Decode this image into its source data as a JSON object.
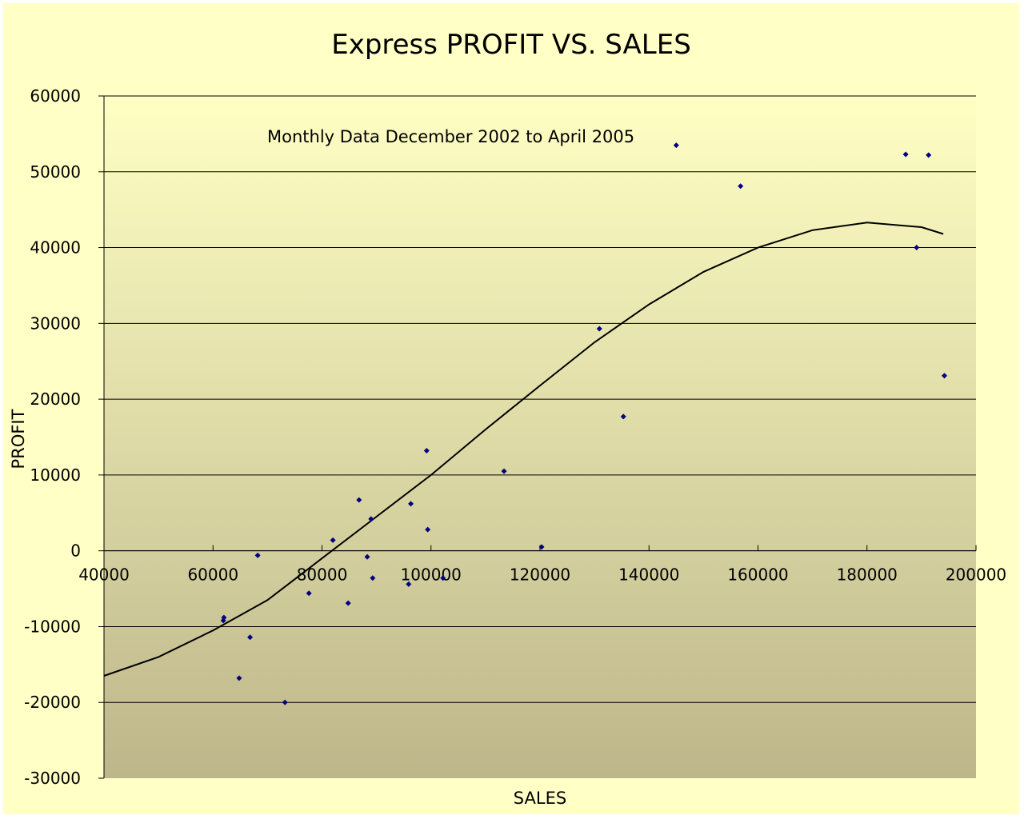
{
  "chart_data": {
    "type": "scatter",
    "title": "Express PROFIT VS. SALES",
    "xlabel": "SALES",
    "ylabel": "PROFIT",
    "annotation": "Monthly Data December 2002 to April 2005",
    "xlim": [
      40000,
      200000
    ],
    "ylim": [
      -30000,
      60000
    ],
    "x_ticks": [
      40000,
      60000,
      80000,
      100000,
      120000,
      140000,
      160000,
      180000,
      200000
    ],
    "y_ticks": [
      -30000,
      -20000,
      -10000,
      0,
      10000,
      20000,
      30000,
      40000,
      50000,
      60000
    ],
    "x_tick_labels": [
      "40000",
      "60000",
      "80000",
      "100000",
      "120000",
      "140000",
      "160000",
      "180000",
      "200000"
    ],
    "y_tick_labels": [
      "-30000",
      "-20000",
      "-10000",
      "0",
      "10000",
      "20000",
      "30000",
      "40000",
      "50000",
      "60000"
    ],
    "grid": "horizontal",
    "colors": {
      "background": "#ffffc6",
      "plot_top": "#ffffc4",
      "plot_bottom": "#bdb68a",
      "marker": "#000080",
      "trendline": "#000000",
      "gridline": "#000000"
    },
    "series": [
      {
        "marker": "diamond",
        "points": [
          {
            "x": 62000,
            "y": -8800
          },
          {
            "x": 61900,
            "y": -9200
          },
          {
            "x": 64800,
            "y": -16800
          },
          {
            "x": 66800,
            "y": -11400
          },
          {
            "x": 68200,
            "y": -600
          },
          {
            "x": 73200,
            "y": -20000
          },
          {
            "x": 77600,
            "y": -5600
          },
          {
            "x": 82000,
            "y": 1400
          },
          {
            "x": 84800,
            "y": -6900
          },
          {
            "x": 86800,
            "y": 6700
          },
          {
            "x": 88300,
            "y": -800
          },
          {
            "x": 89000,
            "y": 4200
          },
          {
            "x": 89300,
            "y": -3600
          },
          {
            "x": 95900,
            "y": -4400
          },
          {
            "x": 96300,
            "y": 6200
          },
          {
            "x": 99200,
            "y": 13200
          },
          {
            "x": 99400,
            "y": 2800
          },
          {
            "x": 102200,
            "y": -3600
          },
          {
            "x": 113400,
            "y": 10500
          },
          {
            "x": 120300,
            "y": 500
          },
          {
            "x": 130900,
            "y": 29300
          },
          {
            "x": 135300,
            "y": 17700
          },
          {
            "x": 145000,
            "y": 53500
          },
          {
            "x": 156800,
            "y": 48100
          },
          {
            "x": 187100,
            "y": 52300
          },
          {
            "x": 189100,
            "y": 40000
          },
          {
            "x": 191300,
            "y": 52200
          },
          {
            "x": 194200,
            "y": 23100
          }
        ]
      }
    ],
    "trendline": {
      "type": "polynomial",
      "x_range": [
        40000,
        194000
      ],
      "points": [
        {
          "x": 40000,
          "y": -16500
        },
        {
          "x": 50000,
          "y": -14000
        },
        {
          "x": 60000,
          "y": -10500
        },
        {
          "x": 70000,
          "y": -6500
        },
        {
          "x": 80000,
          "y": -1000
        },
        {
          "x": 90000,
          "y": 4500
        },
        {
          "x": 100000,
          "y": 10000
        },
        {
          "x": 110000,
          "y": 16000
        },
        {
          "x": 120000,
          "y": 21800
        },
        {
          "x": 130000,
          "y": 27500
        },
        {
          "x": 140000,
          "y": 32500
        },
        {
          "x": 150000,
          "y": 36800
        },
        {
          "x": 160000,
          "y": 40000
        },
        {
          "x": 170000,
          "y": 42300
        },
        {
          "x": 180000,
          "y": 43300
        },
        {
          "x": 190000,
          "y": 42700
        },
        {
          "x": 194000,
          "y": 41800
        }
      ]
    }
  }
}
